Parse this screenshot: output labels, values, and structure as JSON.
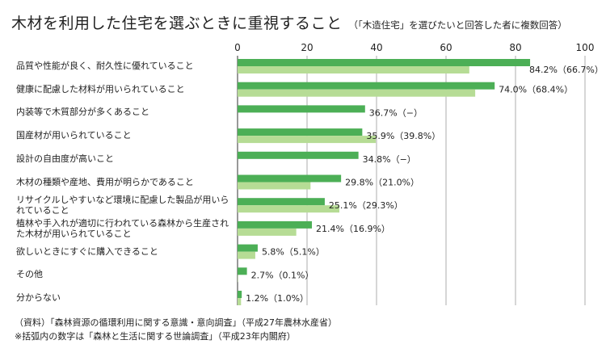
{
  "title": "木材を利用した住宅を選ぶときに重視すること",
  "subtitle": "（「木造住宅」を選びたいと回答した者に複数回答）",
  "chart_data": {
    "type": "bar",
    "orientation": "horizontal",
    "categories": [
      "品質や性能が良く、耐久性に優れていること",
      "健康に配慮した材料が用いられていること",
      "内装等で木質部分が多くあること",
      "国産材が用いられていること",
      "設計の自由度が高いこと",
      "木材の種類や産地、費用が明らかであること",
      "リサイクルしやすいなど環境に配慮した製品が用いられていること",
      "植林や手入れが適切に行われている森林から生産された木材が用いられていること",
      "欲しいときにすぐに購入できること",
      "その他",
      "分からない"
    ],
    "series": [
      {
        "values": [
          84.2,
          74.0,
          36.7,
          35.9,
          34.8,
          29.8,
          25.1,
          21.4,
          5.8,
          2.7,
          1.2
        ]
      },
      {
        "values": [
          66.7,
          68.4,
          null,
          39.8,
          null,
          21.0,
          29.3,
          16.9,
          5.1,
          0.1,
          1.0
        ]
      }
    ],
    "data_labels": [
      "84.2%（66.7%）",
      "74.0%（68.4%）",
      "36.7%（−）",
      "35.9%（39.8%）",
      "34.8%（−）",
      "29.8%（21.0%）",
      "25.1%（29.3%）",
      "21.4%（16.9%）",
      "5.8%（5.1%）",
      "2.7%（0.1%）",
      "1.2%（1.0%）"
    ],
    "x_ticks": [
      "0",
      "20",
      "40",
      "60",
      "80",
      "100"
    ],
    "xlim": [
      0,
      100
    ],
    "grid": true
  },
  "colors": {
    "primary": "#4caf56",
    "secondary": "#b6dc95",
    "grid": "#9a9a9a"
  },
  "footnotes": [
    "（資料）「森林資源の循環利用に関する意識・意向調査」（平成27年農林水産省）",
    "※括弧内の数字は「森林と生活に関する世論調査」（平成23年内閣府）"
  ]
}
